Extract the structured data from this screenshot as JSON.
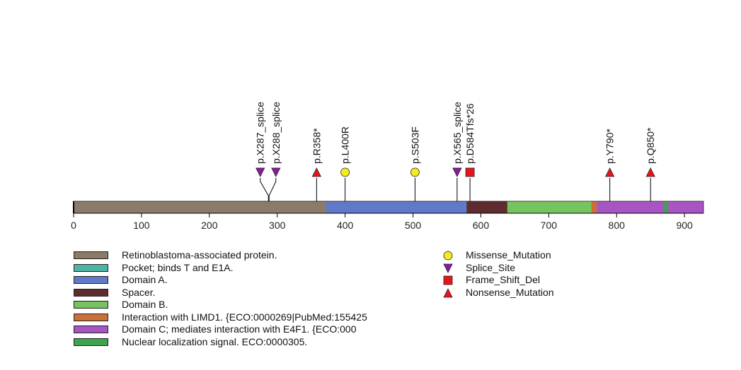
{
  "chart_data": {
    "type": "lollipop",
    "protein_length": 928,
    "axis": {
      "ticks": [
        0,
        100,
        200,
        300,
        400,
        500,
        600,
        700,
        800,
        900
      ],
      "tick_labels": [
        "0",
        "100",
        "200",
        "300",
        "400",
        "500",
        "600",
        "700",
        "800",
        "900"
      ]
    },
    "domains": [
      {
        "name": "Retinoblastoma-associated protein.",
        "start": 1,
        "end": 928,
        "color": "#8B7B69"
      },
      {
        "name": "Domain A.",
        "start": 373,
        "end": 579,
        "color": "#6079C8"
      },
      {
        "name": "Spacer.",
        "start": 580,
        "end": 639,
        "color": "#5E2B31"
      },
      {
        "name": "Domain B.",
        "start": 640,
        "end": 763,
        "color": "#77C35F"
      },
      {
        "name": "Interaction with LIMD1.",
        "start": 764,
        "end": 771,
        "color": "#C8703A"
      },
      {
        "name": "Domain C; mediates interaction with E4F1.",
        "start": 772,
        "end": 870,
        "color": "#A855C4"
      },
      {
        "name": "Nuclear localization signal.",
        "start": 871,
        "end": 876,
        "color": "#3DA34E"
      },
      {
        "name": "Domain C; mediates interaction with E4F1.",
        "start": 877,
        "end": 928,
        "color": "#A855C4"
      }
    ],
    "mutations": [
      {
        "label": "p.X287_splice",
        "position": 287,
        "type": "Splice_Site",
        "display_pos": 275
      },
      {
        "label": "p.X288_splice",
        "position": 288,
        "type": "Splice_Site",
        "display_pos": 298
      },
      {
        "label": "p.R358*",
        "position": 358,
        "type": "Nonsense_Mutation",
        "display_pos": 358
      },
      {
        "label": "p.L400R",
        "position": 400,
        "type": "Missense_Mutation",
        "display_pos": 400
      },
      {
        "label": "p.S503F",
        "position": 503,
        "type": "Missense_Mutation",
        "display_pos": 503
      },
      {
        "label": "p.X565_splice",
        "position": 565,
        "type": "Splice_Site",
        "display_pos": 565
      },
      {
        "label": "p.D584Tfs*26",
        "position": 584,
        "type": "Frame_Shift_Del",
        "display_pos": 584
      },
      {
        "label": "p.Y790*",
        "position": 790,
        "type": "Nonsense_Mutation",
        "display_pos": 790
      },
      {
        "label": "p.Q850*",
        "position": 850,
        "type": "Nonsense_Mutation",
        "display_pos": 850
      }
    ]
  },
  "mutation_styles": {
    "Missense_Mutation": {
      "color": "#F2EC1C",
      "shape": "circle"
    },
    "Splice_Site": {
      "color": "#8B1A9E",
      "shape": "triangle-down"
    },
    "Frame_Shift_Del": {
      "color": "#E8141B",
      "shape": "square"
    },
    "Nonsense_Mutation": {
      "color": "#E8141B",
      "shape": "triangle-up"
    }
  },
  "domain_legend": [
    {
      "label": "Retinoblastoma-associated protein.",
      "color": "#8B7B69"
    },
    {
      "label": "Pocket; binds T and E1A.",
      "color": "#4FB3A4"
    },
    {
      "label": "Domain A.",
      "color": "#6079C8"
    },
    {
      "label": "Spacer.",
      "color": "#5E2B31"
    },
    {
      "label": "Domain B.",
      "color": "#77C35F"
    },
    {
      "label": "Interaction with LIMD1. {ECO:0000269|PubMed:155425",
      "color": "#C8703A"
    },
    {
      "label": "Domain C; mediates interaction with E4F1. {ECO:000",
      "color": "#A855C4"
    },
    {
      "label": "Nuclear localization signal. ECO:0000305.",
      "color": "#3DA34E"
    }
  ],
  "mutation_legend": [
    {
      "label": "Missense_Mutation",
      "type": "Missense_Mutation"
    },
    {
      "label": "Splice_Site",
      "type": "Splice_Site"
    },
    {
      "label": "Frame_Shift_Del",
      "type": "Frame_Shift_Del"
    },
    {
      "label": "Nonsense_Mutation",
      "type": "Nonsense_Mutation"
    }
  ]
}
